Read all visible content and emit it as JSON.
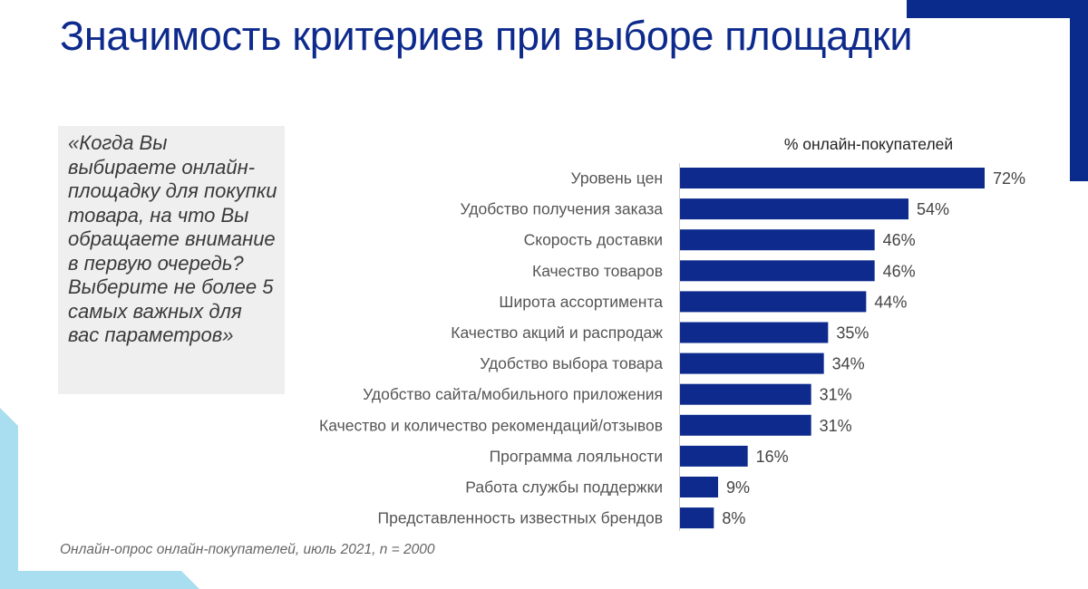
{
  "title": "Значимость критериев при выборе площадки",
  "question": "«Когда Вы выбираете онлайн-площадку для покупки товара, на что Вы обращаете внимание в первую очередь? Выберите не более 5 самых важных для вас параметров»",
  "footnote": "Онлайн-опрос онлайн-покупателей, июль 2021, n = 2000",
  "colors": {
    "bar": "#0d2a8c",
    "title": "#0d2a8c",
    "deco_dark": "#0a2a8c",
    "deco_light": "#a9def0"
  },
  "chart_data": {
    "type": "bar",
    "orientation": "horizontal",
    "title": "% онлайн-покупателей",
    "unit": "%",
    "categories": [
      "Уровень цен",
      "Удобство получения заказа",
      "Скорость доставки",
      "Качество товаров",
      "Широта ассортимента",
      "Качество акций и распродаж",
      "Удобство выбора товара",
      "Удобство сайта/мобильного приложения",
      "Качество и количество рекомендаций/отзывов",
      "Программа лояльности",
      "Работа службы поддержки",
      "Представленность известных брендов"
    ],
    "values": [
      72,
      54,
      46,
      46,
      44,
      35,
      34,
      31,
      31,
      16,
      9,
      8
    ],
    "data_labels": [
      "72%",
      "54%",
      "46%",
      "46%",
      "44%",
      "35%",
      "34%",
      "31%",
      "31%",
      "16%",
      "9%",
      "8%"
    ],
    "xlim": [
      0,
      72
    ],
    "grid": false,
    "legend": "none"
  }
}
